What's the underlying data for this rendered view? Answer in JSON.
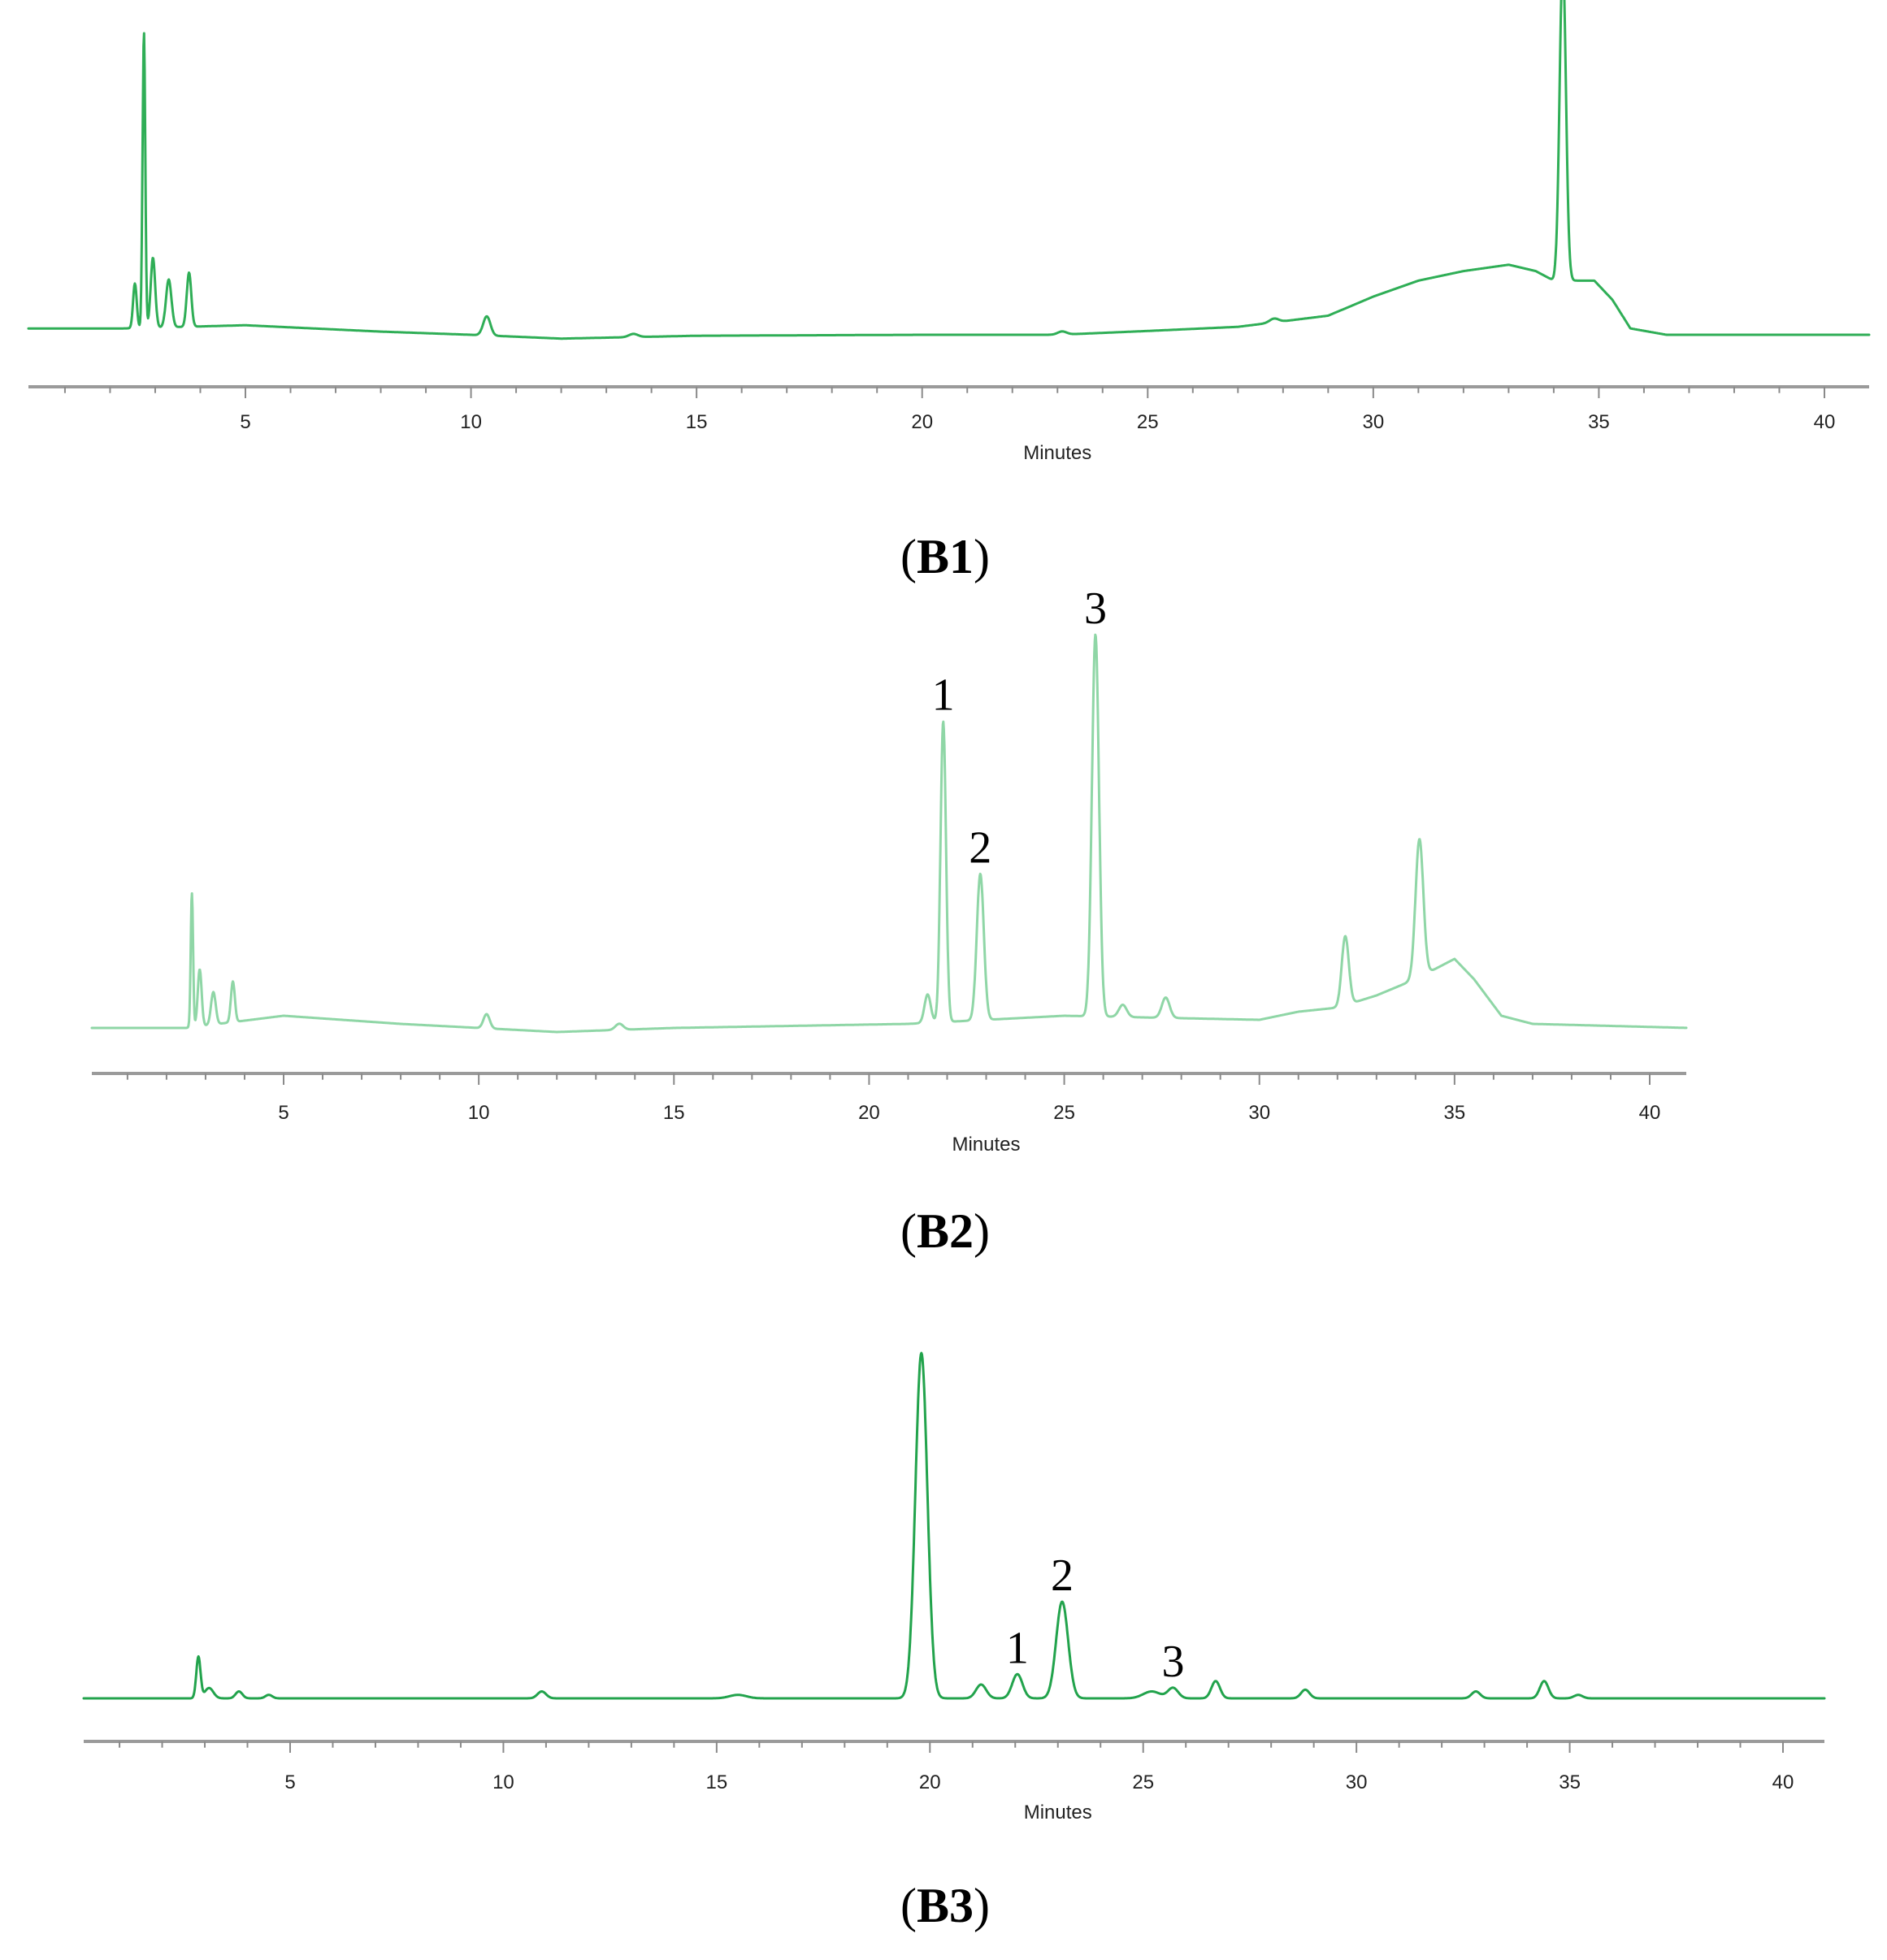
{
  "chart_data": [
    {
      "panel": "B1",
      "label_text": "B1",
      "type": "line",
      "xlabel": "Minutes",
      "ylabel": "",
      "xlim": [
        0,
        41
      ],
      "ticks": [
        5,
        10,
        15,
        20,
        25,
        30,
        35,
        40
      ],
      "color": "#2fae56",
      "baseline": [
        [
          0,
          0.02
        ],
        [
          2.3,
          0.02
        ],
        [
          5,
          0.03
        ],
        [
          8,
          0.01
        ],
        [
          10,
          0.0
        ],
        [
          12,
          -0.012
        ],
        [
          15,
          -0.003
        ],
        [
          20,
          0.0
        ],
        [
          23,
          0.0
        ],
        [
          25,
          0.012
        ],
        [
          27,
          0.025
        ],
        [
          29,
          0.06
        ],
        [
          30,
          0.12
        ],
        [
          31,
          0.17
        ],
        [
          32,
          0.2
        ],
        [
          33,
          0.22
        ],
        [
          33.6,
          0.2
        ],
        [
          34,
          0.17
        ],
        [
          34.9,
          0.17
        ],
        [
          35.3,
          0.11
        ],
        [
          35.7,
          0.02
        ],
        [
          36.5,
          0.0
        ],
        [
          41,
          0.0
        ]
      ],
      "peaks": [
        [
          2.55,
          0.14,
          0.04
        ],
        [
          2.75,
          0.93,
          0.03
        ],
        [
          2.95,
          0.22,
          0.05
        ],
        [
          3.3,
          0.15,
          0.06
        ],
        [
          3.75,
          0.17,
          0.05
        ],
        [
          10.35,
          0.06,
          0.08
        ],
        [
          13.6,
          0.01,
          0.1
        ],
        [
          23.1,
          0.01,
          0.1
        ],
        [
          27.8,
          0.012,
          0.1
        ],
        [
          34.2,
          1.0,
          0.07
        ]
      ],
      "peak_labels": []
    },
    {
      "panel": "B2",
      "label_text": "B2",
      "type": "line",
      "xlabel": "Minutes",
      "ylabel": "",
      "xlim": [
        0,
        41
      ],
      "ticks": [
        5,
        10,
        15,
        20,
        25,
        30,
        35,
        40
      ],
      "color": "#8fd6a6",
      "baseline": [
        [
          0,
          0.0
        ],
        [
          2.5,
          0.0
        ],
        [
          5,
          0.03
        ],
        [
          8,
          0.01
        ],
        [
          10,
          0.0
        ],
        [
          12,
          -0.01
        ],
        [
          15,
          0.0
        ],
        [
          21,
          0.01
        ],
        [
          25,
          0.03
        ],
        [
          30,
          0.02
        ],
        [
          31,
          0.04
        ],
        [
          32,
          0.05
        ],
        [
          33,
          0.08
        ],
        [
          34,
          0.12
        ],
        [
          35,
          0.17
        ],
        [
          35.5,
          0.12
        ],
        [
          36.2,
          0.03
        ],
        [
          37,
          0.01
        ],
        [
          41,
          0.0
        ]
      ],
      "peaks": [
        [
          2.65,
          0.33,
          0.03
        ],
        [
          2.85,
          0.14,
          0.05
        ],
        [
          3.2,
          0.08,
          0.06
        ],
        [
          3.7,
          0.1,
          0.05
        ],
        [
          10.2,
          0.035,
          0.08
        ],
        [
          13.6,
          0.015,
          0.1
        ],
        [
          21.5,
          0.07,
          0.08
        ],
        [
          21.9,
          0.74,
          0.07
        ],
        [
          22.85,
          0.36,
          0.09
        ],
        [
          25.8,
          0.94,
          0.09
        ],
        [
          26.5,
          0.03,
          0.1
        ],
        [
          27.6,
          0.05,
          0.1
        ],
        [
          32.2,
          0.17,
          0.09
        ],
        [
          34.1,
          0.34,
          0.1
        ]
      ],
      "peak_labels": [
        {
          "text": "1",
          "x": 21.9
        },
        {
          "text": "2",
          "x": 22.85
        },
        {
          "text": "3",
          "x": 25.8
        }
      ]
    },
    {
      "panel": "B3",
      "label_text": "B3",
      "type": "line",
      "xlabel": "Minutes",
      "ylabel": "",
      "xlim": [
        0,
        41
      ],
      "ticks": [
        5,
        10,
        15,
        20,
        25,
        30,
        35,
        40
      ],
      "color": "#22a34c",
      "baseline": [
        [
          0,
          0.0
        ],
        [
          41,
          0.0
        ]
      ],
      "peaks": [
        [
          2.85,
          0.12,
          0.05
        ],
        [
          3.1,
          0.03,
          0.1
        ],
        [
          3.8,
          0.02,
          0.08
        ],
        [
          4.5,
          0.01,
          0.08
        ],
        [
          10.9,
          0.02,
          0.1
        ],
        [
          15.5,
          0.01,
          0.2
        ],
        [
          19.8,
          1.0,
          0.14
        ],
        [
          21.2,
          0.04,
          0.12
        ],
        [
          22.05,
          0.07,
          0.12
        ],
        [
          23.1,
          0.28,
          0.14
        ],
        [
          25.2,
          0.02,
          0.2
        ],
        [
          25.7,
          0.03,
          0.12
        ],
        [
          26.7,
          0.05,
          0.1
        ],
        [
          28.8,
          0.025,
          0.1
        ],
        [
          32.8,
          0.02,
          0.1
        ],
        [
          34.4,
          0.05,
          0.1
        ],
        [
          35.2,
          0.01,
          0.1
        ]
      ],
      "peak_labels": [
        {
          "text": "1",
          "x": 22.05
        },
        {
          "text": "2",
          "x": 23.1
        },
        {
          "text": "3",
          "x": 25.7
        }
      ]
    }
  ]
}
